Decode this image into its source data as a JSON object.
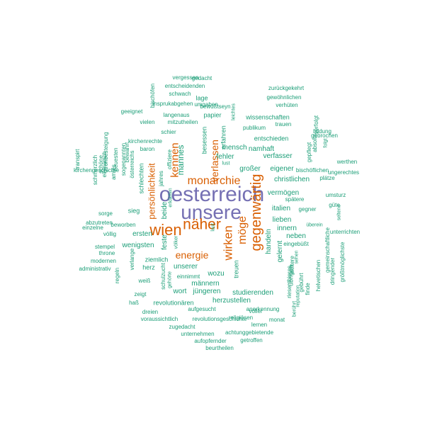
{
  "colors": {
    "teal": "#1b9e77",
    "orange": "#d95f02",
    "purple": "#7570b3"
  },
  "words": [
    {
      "text": "oesterreich",
      "color": "purple"
    },
    {
      "text": "unsere",
      "color": "purple"
    },
    {
      "text": "näher",
      "color": "orange"
    },
    {
      "text": "wien",
      "color": "orange"
    },
    {
      "text": "gegenwärtig",
      "color": "orange"
    },
    {
      "text": "monarchie",
      "color": "orange"
    },
    {
      "text": "wirken",
      "color": "orange"
    },
    {
      "text": "möge",
      "color": "orange"
    },
    {
      "text": "energie",
      "color": "orange"
    },
    {
      "text": "kennen",
      "color": "orange"
    },
    {
      "text": "verlassen",
      "color": "orange"
    },
    {
      "text": "persönlichkeit",
      "color": "orange"
    },
    {
      "text": "mannes",
      "color": "teal"
    },
    {
      "text": "mensch",
      "color": "teal"
    },
    {
      "text": "namhaft",
      "color": "teal"
    },
    {
      "text": "fehler",
      "color": "teal"
    },
    {
      "text": "verfasser",
      "color": "teal"
    },
    {
      "text": "großer",
      "color": "teal"
    },
    {
      "text": "eigener",
      "color": "teal"
    },
    {
      "text": "christlichen",
      "color": "teal"
    },
    {
      "text": "vermögen",
      "color": "teal"
    },
    {
      "text": "italien",
      "color": "teal"
    },
    {
      "text": "lieben",
      "color": "teal"
    },
    {
      "text": "innern",
      "color": "teal"
    },
    {
      "text": "neben",
      "color": "teal"
    },
    {
      "text": "gelernt",
      "color": "teal"
    },
    {
      "text": "handeln",
      "color": "teal"
    },
    {
      "text": "übrigen",
      "color": "teal"
    },
    {
      "text": "treuen",
      "color": "teal"
    },
    {
      "text": "unserer",
      "color": "teal"
    },
    {
      "text": "männern",
      "color": "teal"
    },
    {
      "text": "wozu",
      "color": "teal"
    },
    {
      "text": "wort",
      "color": "teal"
    },
    {
      "text": "jüngeren",
      "color": "teal"
    },
    {
      "text": "herzustellen",
      "color": "teal"
    },
    {
      "text": "studierenden",
      "color": "teal"
    },
    {
      "text": "revolutionären",
      "color": "teal"
    },
    {
      "text": "wenigsten",
      "color": "teal"
    },
    {
      "text": "ersten",
      "color": "teal"
    },
    {
      "text": "feste",
      "color": "teal"
    },
    {
      "text": "beide",
      "color": "teal"
    },
    {
      "text": "sieg",
      "color": "teal"
    },
    {
      "text": "ziemlich",
      "color": "teal"
    },
    {
      "text": "herz",
      "color": "teal"
    },
    {
      "text": "entschieden",
      "color": "teal"
    },
    {
      "text": "besessen",
      "color": "teal"
    },
    {
      "text": "erfahren",
      "color": "teal"
    },
    {
      "text": "wissenschaften",
      "color": "teal"
    },
    {
      "text": "publikum",
      "color": "teal"
    },
    {
      "text": "trauen",
      "color": "teal"
    },
    {
      "text": "papier",
      "color": "teal"
    },
    {
      "text": "leichtes",
      "color": "teal"
    },
    {
      "text": "lage",
      "color": "teal"
    },
    {
      "text": "bewußtseyn",
      "color": "teal"
    },
    {
      "text": "umgaben",
      "color": "teal"
    },
    {
      "text": "insprukabgehen",
      "color": "teal"
    },
    {
      "text": "verhüten",
      "color": "teal"
    },
    {
      "text": "gewöhnlichen",
      "color": "teal"
    },
    {
      "text": "zurückgekehrt",
      "color": "teal"
    },
    {
      "text": "entscheidenden",
      "color": "teal"
    },
    {
      "text": "schwach",
      "color": "teal"
    },
    {
      "text": "gedacht",
      "color": "teal"
    },
    {
      "text": "vergessen",
      "color": "teal"
    },
    {
      "text": "bischöfen",
      "color": "teal"
    },
    {
      "text": "geeignet",
      "color": "teal"
    },
    {
      "text": "langenaus",
      "color": "teal"
    },
    {
      "text": "mitzutheilen",
      "color": "teal"
    },
    {
      "text": "vielen",
      "color": "teal"
    },
    {
      "text": "schier",
      "color": "teal"
    },
    {
      "text": "kirchenrechte",
      "color": "teal"
    },
    {
      "text": "baron",
      "color": "teal"
    },
    {
      "text": "offiziere",
      "color": "teal"
    },
    {
      "text": "schlechten",
      "color": "teal"
    },
    {
      "text": "österreichs",
      "color": "teal"
    },
    {
      "text": "bewahrt",
      "color": "teal"
    },
    {
      "text": "sogenannten",
      "color": "teal"
    },
    {
      "text": "amtes",
      "color": "teal"
    },
    {
      "text": "neuesten",
      "color": "teal"
    },
    {
      "text": "thronbesteigung",
      "color": "teal"
    },
    {
      "text": "einmarsch",
      "color": "teal"
    },
    {
      "text": "schöne",
      "color": "teal"
    },
    {
      "text": "schmerzlich",
      "color": "teal"
    },
    {
      "text": "transpirt",
      "color": "teal"
    },
    {
      "text": "kirchengeschichte",
      "color": "teal"
    },
    {
      "text": "jahres",
      "color": "teal"
    },
    {
      "text": "erklärten",
      "color": "teal"
    },
    {
      "text": "völker",
      "color": "teal"
    },
    {
      "text": "laut",
      "color": "teal"
    },
    {
      "text": "lust",
      "color": "teal"
    },
    {
      "text": "sorge",
      "color": "teal"
    },
    {
      "text": "abzutreten",
      "color": "teal"
    },
    {
      "text": "einzelne",
      "color": "teal"
    },
    {
      "text": "beworben",
      "color": "teal"
    },
    {
      "text": "völlig",
      "color": "teal"
    },
    {
      "text": "stempel",
      "color": "teal"
    },
    {
      "text": "throne",
      "color": "teal"
    },
    {
      "text": "modernen",
      "color": "teal"
    },
    {
      "text": "administrativ",
      "color": "teal"
    },
    {
      "text": "verlange",
      "color": "teal"
    },
    {
      "text": "regeln",
      "color": "teal"
    },
    {
      "text": "schulzucht",
      "color": "teal"
    },
    {
      "text": "gehörte",
      "color": "teal"
    },
    {
      "text": "weiß",
      "color": "teal"
    },
    {
      "text": "zeigt",
      "color": "teal"
    },
    {
      "text": "einnimmt",
      "color": "teal"
    },
    {
      "text": "haß",
      "color": "teal"
    },
    {
      "text": "dreien",
      "color": "teal"
    },
    {
      "text": "aufgesucht",
      "color": "teal"
    },
    {
      "text": "anerkennung",
      "color": "teal"
    },
    {
      "text": "voraussichtlich",
      "color": "teal"
    },
    {
      "text": "revolutionsgeschichte",
      "color": "teal"
    },
    {
      "text": "religiösen",
      "color": "teal"
    },
    {
      "text": "voller",
      "color": "teal"
    },
    {
      "text": "monat",
      "color": "teal"
    },
    {
      "text": "lernen",
      "color": "teal"
    },
    {
      "text": "zugedacht",
      "color": "teal"
    },
    {
      "text": "unternehmen",
      "color": "teal"
    },
    {
      "text": "achtunggebietende",
      "color": "teal"
    },
    {
      "text": "aufopfernder",
      "color": "teal"
    },
    {
      "text": "getroffen",
      "color": "teal"
    },
    {
      "text": "beurtheilen",
      "color": "teal"
    },
    {
      "text": "riesenthieres",
      "color": "teal"
    },
    {
      "text": "berührt",
      "color": "teal"
    },
    {
      "text": "reputation",
      "color": "teal"
    },
    {
      "text": "gebührt",
      "color": "teal"
    },
    {
      "text": "weitere",
      "color": "teal"
    },
    {
      "text": "sehen",
      "color": "teal"
    },
    {
      "text": "eingebüßt",
      "color": "teal"
    },
    {
      "text": "überein",
      "color": "teal"
    },
    {
      "text": "finde",
      "color": "teal"
    },
    {
      "text": "helvetischen",
      "color": "teal"
    },
    {
      "text": "gemeinschaftliche",
      "color": "teal"
    },
    {
      "text": "dringender",
      "color": "teal"
    },
    {
      "text": "größtmöglichste",
      "color": "teal"
    },
    {
      "text": "unterrichten",
      "color": "teal"
    },
    {
      "text": "seltene",
      "color": "teal"
    },
    {
      "text": "güte",
      "color": "teal"
    },
    {
      "text": "umsturz",
      "color": "teal"
    },
    {
      "text": "gegner",
      "color": "teal"
    },
    {
      "text": "spätere",
      "color": "teal"
    },
    {
      "text": "plätze",
      "color": "teal"
    },
    {
      "text": "ungerechtes",
      "color": "teal"
    },
    {
      "text": "werthen",
      "color": "teal"
    },
    {
      "text": "bischöflichen",
      "color": "teal"
    },
    {
      "text": "gepflegt",
      "color": "teal"
    },
    {
      "text": "absolut",
      "color": "teal"
    },
    {
      "text": "folgt",
      "color": "teal"
    },
    {
      "text": "verfolgt",
      "color": "teal"
    },
    {
      "text": "bildung",
      "color": "teal"
    },
    {
      "text": "gebrochen",
      "color": "teal"
    }
  ]
}
